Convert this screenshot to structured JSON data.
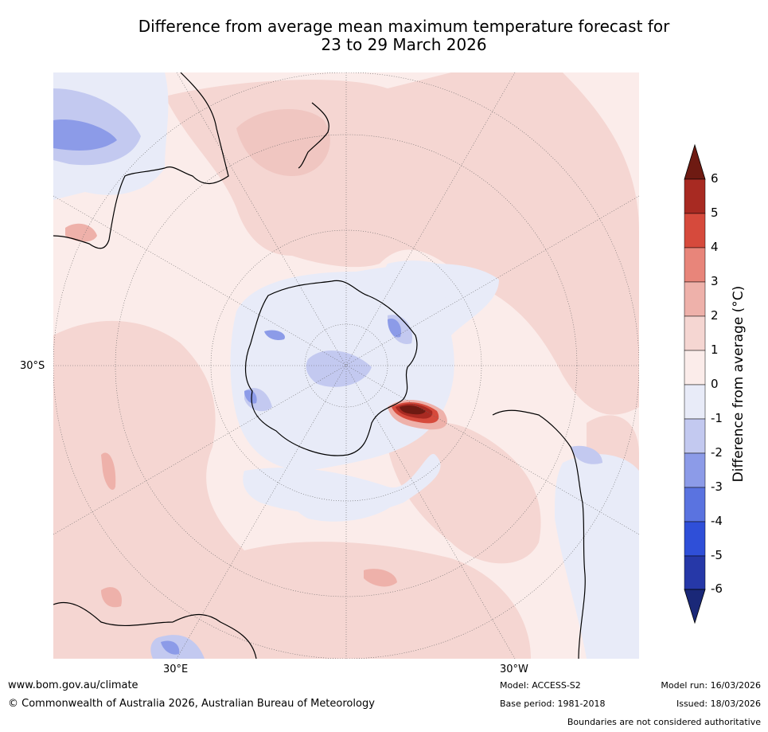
{
  "title_line1": "Difference from average mean maximum temperature forecast for",
  "title_line2": "23 to 29 March 2026",
  "lat_label": "30°S",
  "lon_labels": [
    "30°E",
    "30°W"
  ],
  "colorbar": {
    "label": "Difference from average (°C)",
    "ticks": [
      "6",
      "5",
      "4",
      "3",
      "2",
      "1",
      "0",
      "-1",
      "-2",
      "-3",
      "-4",
      "-5",
      "-6"
    ],
    "colors": {
      "gt6": "#6e1a12",
      "5to6": "#a82a22",
      "4to5": "#d64a3c",
      "3to4": "#e8857a",
      "2to3": "#eeb1aa",
      "1to2": "#f5d6d2",
      "0to1": "#fbecea",
      "m1to0": "#e8ebf8",
      "m2tom1": "#c3c9f0",
      "m3tom2": "#8c9be8",
      "m4tom3": "#5a73e0",
      "m5tom4": "#2f4fd8",
      "m6tom5": "#2638a8",
      "ltm6": "#1a2878"
    }
  },
  "footer": {
    "website": "www.bom.gov.au/climate",
    "copyright": "© Commonwealth of Australia 2026, Australian Bureau of Meteorology",
    "model": "Model: ACCESS-S2",
    "base_period": "Base period: 1981-2018",
    "model_run": "Model run: 16/03/2026",
    "issued": "Issued: 18/03/2026",
    "disclaimer": "Boundaries are not considered authoritative"
  }
}
